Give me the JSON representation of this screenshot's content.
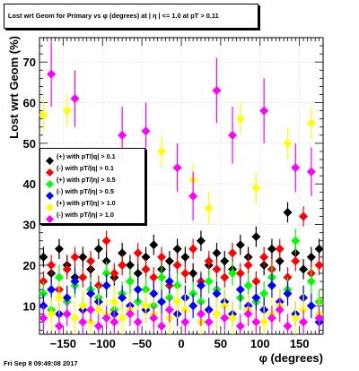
{
  "chart_data": {
    "type": "scatter",
    "title": "Lost wrt Geom for Primary vs φ (degrees) at | η | <= 1.0 at pT > 0.11",
    "xlabel": "φ (degrees)",
    "ylabel": "Lost wrt Geom (%)",
    "xlim": [
      -180,
      180
    ],
    "ylim": [
      3,
      76
    ],
    "xticks": [
      -150,
      -100,
      -50,
      0,
      50,
      100,
      150
    ],
    "yticks": [
      10,
      20,
      30,
      40,
      50,
      60,
      70
    ],
    "xtick_labels": [
      "−150",
      "−100",
      "−50",
      "0",
      "50",
      "100",
      "150"
    ],
    "ytick_labels": [
      "10",
      "20",
      "30",
      "40",
      "50",
      "60",
      "70"
    ],
    "grid": true,
    "legend_position": "left-middle",
    "footer": "Fri Sep  8 09:49:08 2017",
    "series": [
      {
        "name": "(+) with pT/|q| > 0.1",
        "color": "#000000",
        "x": [
          -175,
          -165,
          -155,
          -145,
          -135,
          -125,
          -115,
          -105,
          -95,
          -85,
          -75,
          -65,
          -55,
          -45,
          -35,
          -25,
          -15,
          -5,
          5,
          15,
          25,
          35,
          45,
          55,
          65,
          75,
          85,
          95,
          105,
          115,
          125,
          135,
          145,
          155,
          165,
          175
        ],
        "y": [
          22,
          18,
          24,
          20,
          17,
          22,
          19,
          24,
          21,
          17,
          23,
          20,
          18,
          22,
          25,
          19,
          21,
          24,
          22,
          18,
          26,
          20,
          23,
          21,
          19,
          25,
          22,
          27,
          20,
          24,
          21,
          33,
          23,
          19,
          22,
          24
        ],
        "err": [
          2.5,
          2.5,
          2.5,
          2.5,
          2.5,
          2.5,
          2.5,
          2.5,
          2.5,
          2.5,
          2.5,
          2.5,
          2.5,
          2.5,
          2.5,
          2.5,
          2.5,
          2.5,
          2.5,
          2.5,
          2.5,
          2.5,
          2.5,
          2.5,
          2.5,
          2.5,
          2.5,
          2.5,
          2.5,
          2.5,
          2.5,
          2.5,
          2.5,
          2.5,
          2.5,
          2.5
        ]
      },
      {
        "name": "(-) with pT/|q| > 0.1",
        "color": "#ff0000",
        "x": [
          -175,
          -165,
          -155,
          -145,
          -135,
          -125,
          -115,
          -105,
          -95,
          -85,
          -75,
          -65,
          -55,
          -45,
          -35,
          -25,
          -15,
          -5,
          5,
          15,
          25,
          35,
          45,
          55,
          65,
          75,
          85,
          95,
          105,
          115,
          125,
          135,
          145,
          155,
          165,
          175
        ],
        "y": [
          16,
          20,
          14,
          19,
          22,
          17,
          21,
          15,
          26,
          18,
          20,
          16,
          23,
          19,
          17,
          22,
          15,
          20,
          18,
          24,
          16,
          21,
          19,
          17,
          23,
          18,
          20,
          16,
          22,
          19,
          24,
          17,
          21,
          32,
          18,
          20
        ],
        "err": [
          2.5,
          2.5,
          2.5,
          2.5,
          2.5,
          2.5,
          2.5,
          2.5,
          2.5,
          2.5,
          2.5,
          2.5,
          2.5,
          2.5,
          2.5,
          2.5,
          2.5,
          2.5,
          2.5,
          2.5,
          2.5,
          2.5,
          2.5,
          2.5,
          2.5,
          2.5,
          2.5,
          2.5,
          2.5,
          2.5,
          2.5,
          2.5,
          2.5,
          2.5,
          2.5,
          2.5
        ]
      },
      {
        "name": "(+) with pT/|η| > 0.5",
        "color": "#00ff00",
        "x": [
          -175,
          -165,
          -155,
          -145,
          -135,
          -125,
          -115,
          -105,
          -95,
          -85,
          -75,
          -65,
          -55,
          -45,
          -35,
          -25,
          -15,
          -5,
          5,
          15,
          25,
          35,
          45,
          55,
          65,
          75,
          85,
          95,
          105,
          115,
          125,
          135,
          145,
          155,
          165,
          175
        ],
        "y": [
          13,
          9,
          17,
          11,
          15,
          10,
          14,
          12,
          18,
          9,
          13,
          16,
          11,
          14,
          10,
          17,
          12,
          15,
          9,
          13,
          11,
          16,
          14,
          10,
          18,
          12,
          15,
          11,
          13,
          17,
          10,
          14,
          26,
          12,
          16,
          11
        ],
        "err": [
          3,
          3,
          3,
          3,
          3,
          3,
          3,
          3,
          3,
          3,
          3,
          3,
          3,
          3,
          3,
          3,
          3,
          3,
          3,
          3,
          3,
          3,
          3,
          3,
          3,
          3,
          3,
          3,
          3,
          3,
          3,
          3,
          3,
          3,
          3,
          3
        ]
      },
      {
        "name": "(-) with pT/|η| > 0.5",
        "color": "#0000ff",
        "x": [
          -175,
          -165,
          -155,
          -145,
          -135,
          -125,
          -115,
          -105,
          -95,
          -85,
          -75,
          -65,
          -55,
          -45,
          -35,
          -25,
          -15,
          -5,
          5,
          15,
          25,
          35,
          45,
          55,
          65,
          75,
          85,
          95,
          105,
          115,
          125,
          135,
          145,
          155,
          165,
          175
        ],
        "y": [
          10,
          14,
          8,
          12,
          16,
          9,
          13,
          11,
          15,
          8,
          12,
          10,
          14,
          9,
          13,
          11,
          16,
          8,
          12,
          10,
          15,
          9,
          13,
          11,
          8,
          14,
          10,
          12,
          9,
          15,
          11,
          13,
          8,
          12,
          10,
          6
        ],
        "err": [
          3,
          3,
          3,
          3,
          3,
          3,
          3,
          3,
          3,
          3,
          3,
          3,
          3,
          3,
          3,
          3,
          3,
          3,
          3,
          3,
          3,
          3,
          3,
          3,
          3,
          3,
          3,
          3,
          3,
          3,
          3,
          3,
          3,
          3,
          3,
          3
        ]
      },
      {
        "name": "(+) with pT/|η| > 1.0",
        "color": "#ffff00",
        "x": [
          -175,
          -165,
          -155,
          -145,
          -135,
          -125,
          -115,
          -105,
          -95,
          -85,
          -75,
          -65,
          -55,
          -45,
          -35,
          -25,
          -15,
          -5,
          5,
          15,
          25,
          35,
          45,
          55,
          65,
          75,
          85,
          95,
          105,
          115,
          125,
          135,
          145,
          155,
          165,
          175
        ],
        "y": [
          57,
          8,
          12,
          58,
          7,
          10,
          6,
          9,
          8,
          11,
          7,
          9,
          6,
          10,
          8,
          48,
          7,
          11,
          9,
          41,
          6,
          34,
          8,
          10,
          7,
          56,
          9,
          39,
          6,
          8,
          10,
          50,
          7,
          9,
          55,
          8
        ],
        "err": [
          4,
          4,
          4,
          4,
          4,
          4,
          4,
          4,
          4,
          4,
          4,
          4,
          4,
          4,
          4,
          4,
          4,
          4,
          4,
          4,
          4,
          4,
          4,
          4,
          4,
          4,
          4,
          4,
          4,
          4,
          4,
          4,
          4,
          4,
          4,
          4
        ]
      },
      {
        "name": "(-) with pT/|η| > 1.0",
        "color": "#ff00ff",
        "x": [
          -175,
          -165,
          -155,
          -145,
          -135,
          -125,
          -115,
          -105,
          -95,
          -85,
          -75,
          -65,
          -55,
          -45,
          -35,
          -25,
          -15,
          -5,
          5,
          15,
          25,
          35,
          45,
          55,
          65,
          75,
          85,
          95,
          105,
          115,
          125,
          135,
          145,
          155,
          165,
          175
        ],
        "y": [
          7,
          67,
          5,
          8,
          61,
          6,
          9,
          5,
          7,
          6,
          52,
          8,
          6,
          53,
          7,
          5,
          9,
          44,
          6,
          37,
          8,
          6,
          63,
          7,
          52,
          5,
          8,
          6,
          58,
          7,
          9,
          5,
          44,
          6,
          43,
          7
        ],
        "err": [
          3,
          8,
          3,
          3,
          7,
          3,
          3,
          3,
          3,
          3,
          7,
          3,
          3,
          7,
          3,
          3,
          3,
          6,
          3,
          6,
          3,
          3,
          8,
          3,
          7,
          3,
          3,
          3,
          8,
          3,
          3,
          3,
          6,
          3,
          6,
          3
        ]
      }
    ]
  }
}
